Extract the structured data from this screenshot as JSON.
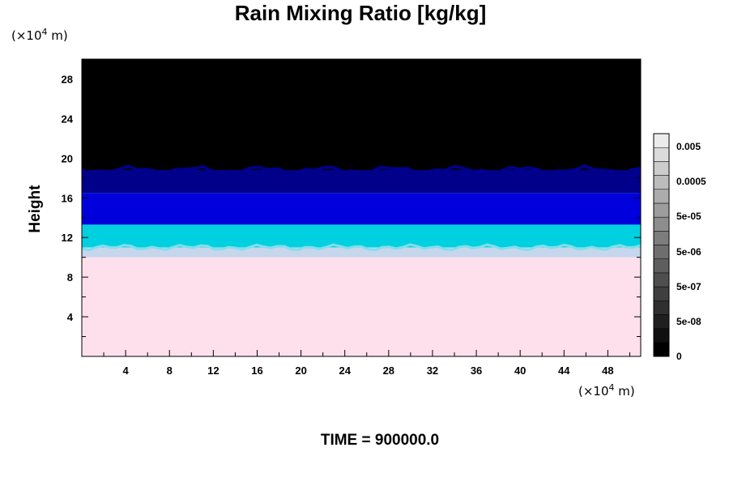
{
  "chart_data": {
    "type": "heatmap",
    "title": "Rain Mixing Ratio [kg/kg]",
    "ylabel": "Height",
    "xlabel": "",
    "y_unit": "(×10⁴ m)",
    "x_unit": "(×10⁴ m)",
    "x_unit_base": "(×10",
    "x_unit_exp": "4",
    "x_unit_tail": " m)",
    "y_unit_base": "(×10",
    "y_unit_exp": "4",
    "y_unit_tail": " m)",
    "xlim": [
      0,
      51
    ],
    "ylim": [
      0,
      30
    ],
    "x_ticks": [
      4,
      8,
      12,
      16,
      20,
      24,
      28,
      32,
      36,
      40,
      44,
      48
    ],
    "y_ticks": [
      4,
      8,
      12,
      16,
      20,
      24,
      28
    ],
    "time_label": "TIME = 900000.0",
    "colorbar": {
      "labels": [
        "0",
        "5e-08",
        "5e-07",
        "5e-06",
        "5e-05",
        "0.0005",
        "0.005"
      ],
      "levels": 16
    },
    "layers": [
      {
        "y_from": 0,
        "y_to": 10,
        "color": "#fde0ec"
      },
      {
        "y_from": 10,
        "y_to": 11,
        "color": "#c6d6ec"
      },
      {
        "y_from": 11,
        "y_to": 13.3,
        "color": "#00d0e0"
      },
      {
        "y_from": 13.3,
        "y_to": 16.5,
        "color": "#0000dc"
      },
      {
        "y_from": 16.5,
        "y_to": 18.8,
        "color": "#00008a"
      },
      {
        "y_from": 18.8,
        "y_to": 30,
        "color": "#000000"
      }
    ],
    "colors": {
      "background": "#ffffff",
      "frame": "#000000"
    }
  }
}
